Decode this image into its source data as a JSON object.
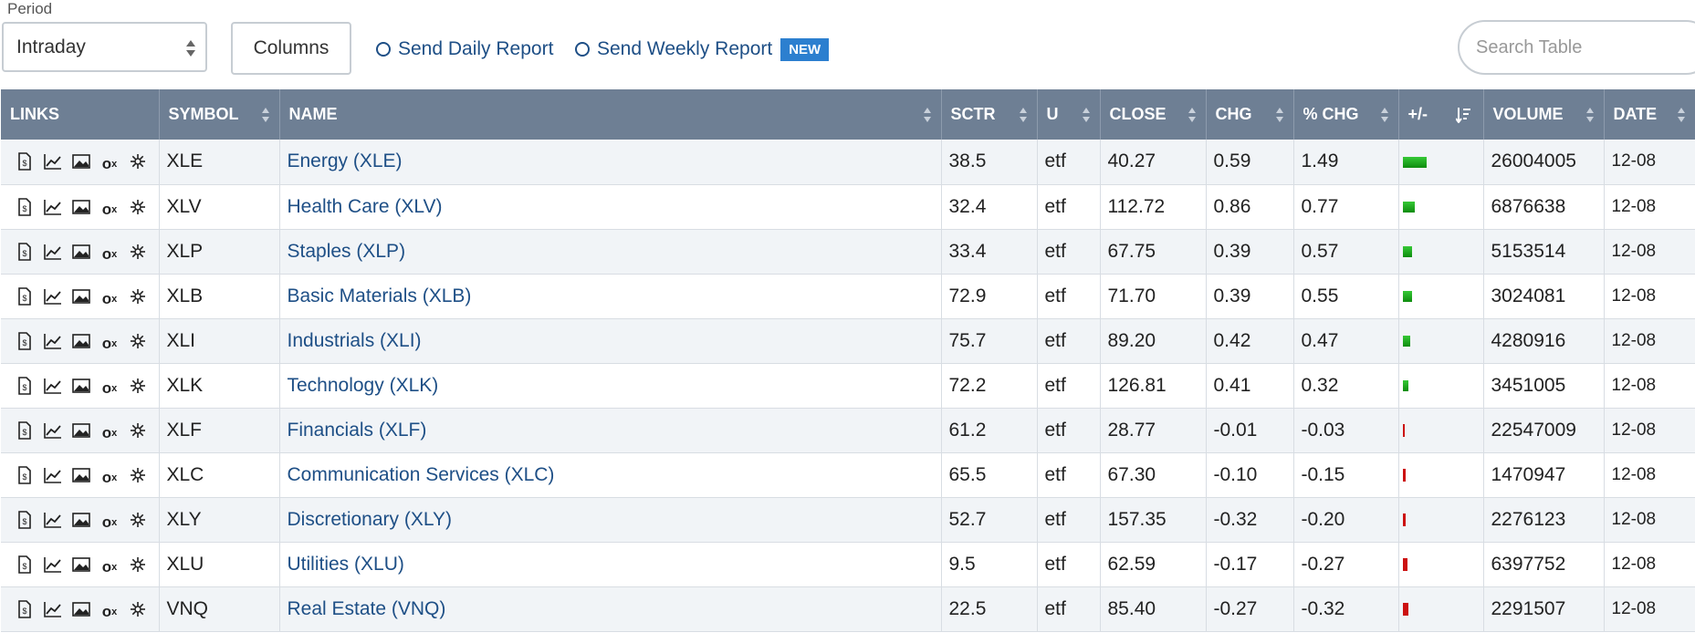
{
  "toolbar": {
    "period_label": "Period",
    "period_value": "Intraday",
    "columns_label": "Columns",
    "daily_report_label": "Send Daily Report",
    "weekly_report_label": "Send Weekly Report",
    "new_badge": "NEW",
    "search_placeholder": "Search Table"
  },
  "table": {
    "headers": [
      "LINKS",
      "SYMBOL",
      "NAME",
      "SCTR",
      "U",
      "CLOSE",
      "CHG",
      "% CHG",
      "+/-",
      "VOLUME",
      "DATE"
    ],
    "rows": [
      {
        "symbol": "XLE",
        "name": "Energy (XLE)",
        "sctr": "38.5",
        "u": "etf",
        "close": "40.27",
        "chg": "0.59",
        "pct": "1.49",
        "volume": "26004005",
        "date": "12-08"
      },
      {
        "symbol": "XLV",
        "name": "Health Care (XLV)",
        "sctr": "32.4",
        "u": "etf",
        "close": "112.72",
        "chg": "0.86",
        "pct": "0.77",
        "volume": "6876638",
        "date": "12-08"
      },
      {
        "symbol": "XLP",
        "name": "Staples (XLP)",
        "sctr": "33.4",
        "u": "etf",
        "close": "67.75",
        "chg": "0.39",
        "pct": "0.57",
        "volume": "5153514",
        "date": "12-08"
      },
      {
        "symbol": "XLB",
        "name": "Basic Materials (XLB)",
        "sctr": "72.9",
        "u": "etf",
        "close": "71.70",
        "chg": "0.39",
        "pct": "0.55",
        "volume": "3024081",
        "date": "12-08"
      },
      {
        "symbol": "XLI",
        "name": "Industrials (XLI)",
        "sctr": "75.7",
        "u": "etf",
        "close": "89.20",
        "chg": "0.42",
        "pct": "0.47",
        "volume": "4280916",
        "date": "12-08"
      },
      {
        "symbol": "XLK",
        "name": "Technology (XLK)",
        "sctr": "72.2",
        "u": "etf",
        "close": "126.81",
        "chg": "0.41",
        "pct": "0.32",
        "volume": "3451005",
        "date": "12-08"
      },
      {
        "symbol": "XLF",
        "name": "Financials (XLF)",
        "sctr": "61.2",
        "u": "etf",
        "close": "28.77",
        "chg": "-0.01",
        "pct": "-0.03",
        "volume": "22547009",
        "date": "12-08"
      },
      {
        "symbol": "XLC",
        "name": "Communication Services (XLC)",
        "sctr": "65.5",
        "u": "etf",
        "close": "67.30",
        "chg": "-0.10",
        "pct": "-0.15",
        "volume": "1470947",
        "date": "12-08"
      },
      {
        "symbol": "XLY",
        "name": "Discretionary (XLY)",
        "sctr": "52.7",
        "u": "etf",
        "close": "157.35",
        "chg": "-0.32",
        "pct": "-0.20",
        "volume": "2276123",
        "date": "12-08"
      },
      {
        "symbol": "XLU",
        "name": "Utilities (XLU)",
        "sctr": "9.5",
        "u": "etf",
        "close": "62.59",
        "chg": "-0.17",
        "pct": "-0.27",
        "volume": "6397752",
        "date": "12-08"
      },
      {
        "symbol": "VNQ",
        "name": "Real Estate (VNQ)",
        "sctr": "22.5",
        "u": "etf",
        "close": "85.40",
        "chg": "-0.27",
        "pct": "-0.32",
        "volume": "2291507",
        "date": "12-08"
      }
    ]
  },
  "link_icons": [
    "summary-icon",
    "chart-icon",
    "image-chart-icon",
    "point-figure-icon",
    "seasonality-icon"
  ],
  "colors": {
    "header_bg": "#6e7f94",
    "positive": "#1aa81a",
    "negative": "#cc1111",
    "link": "#1e4f86",
    "accent": "#2c7fcf"
  }
}
